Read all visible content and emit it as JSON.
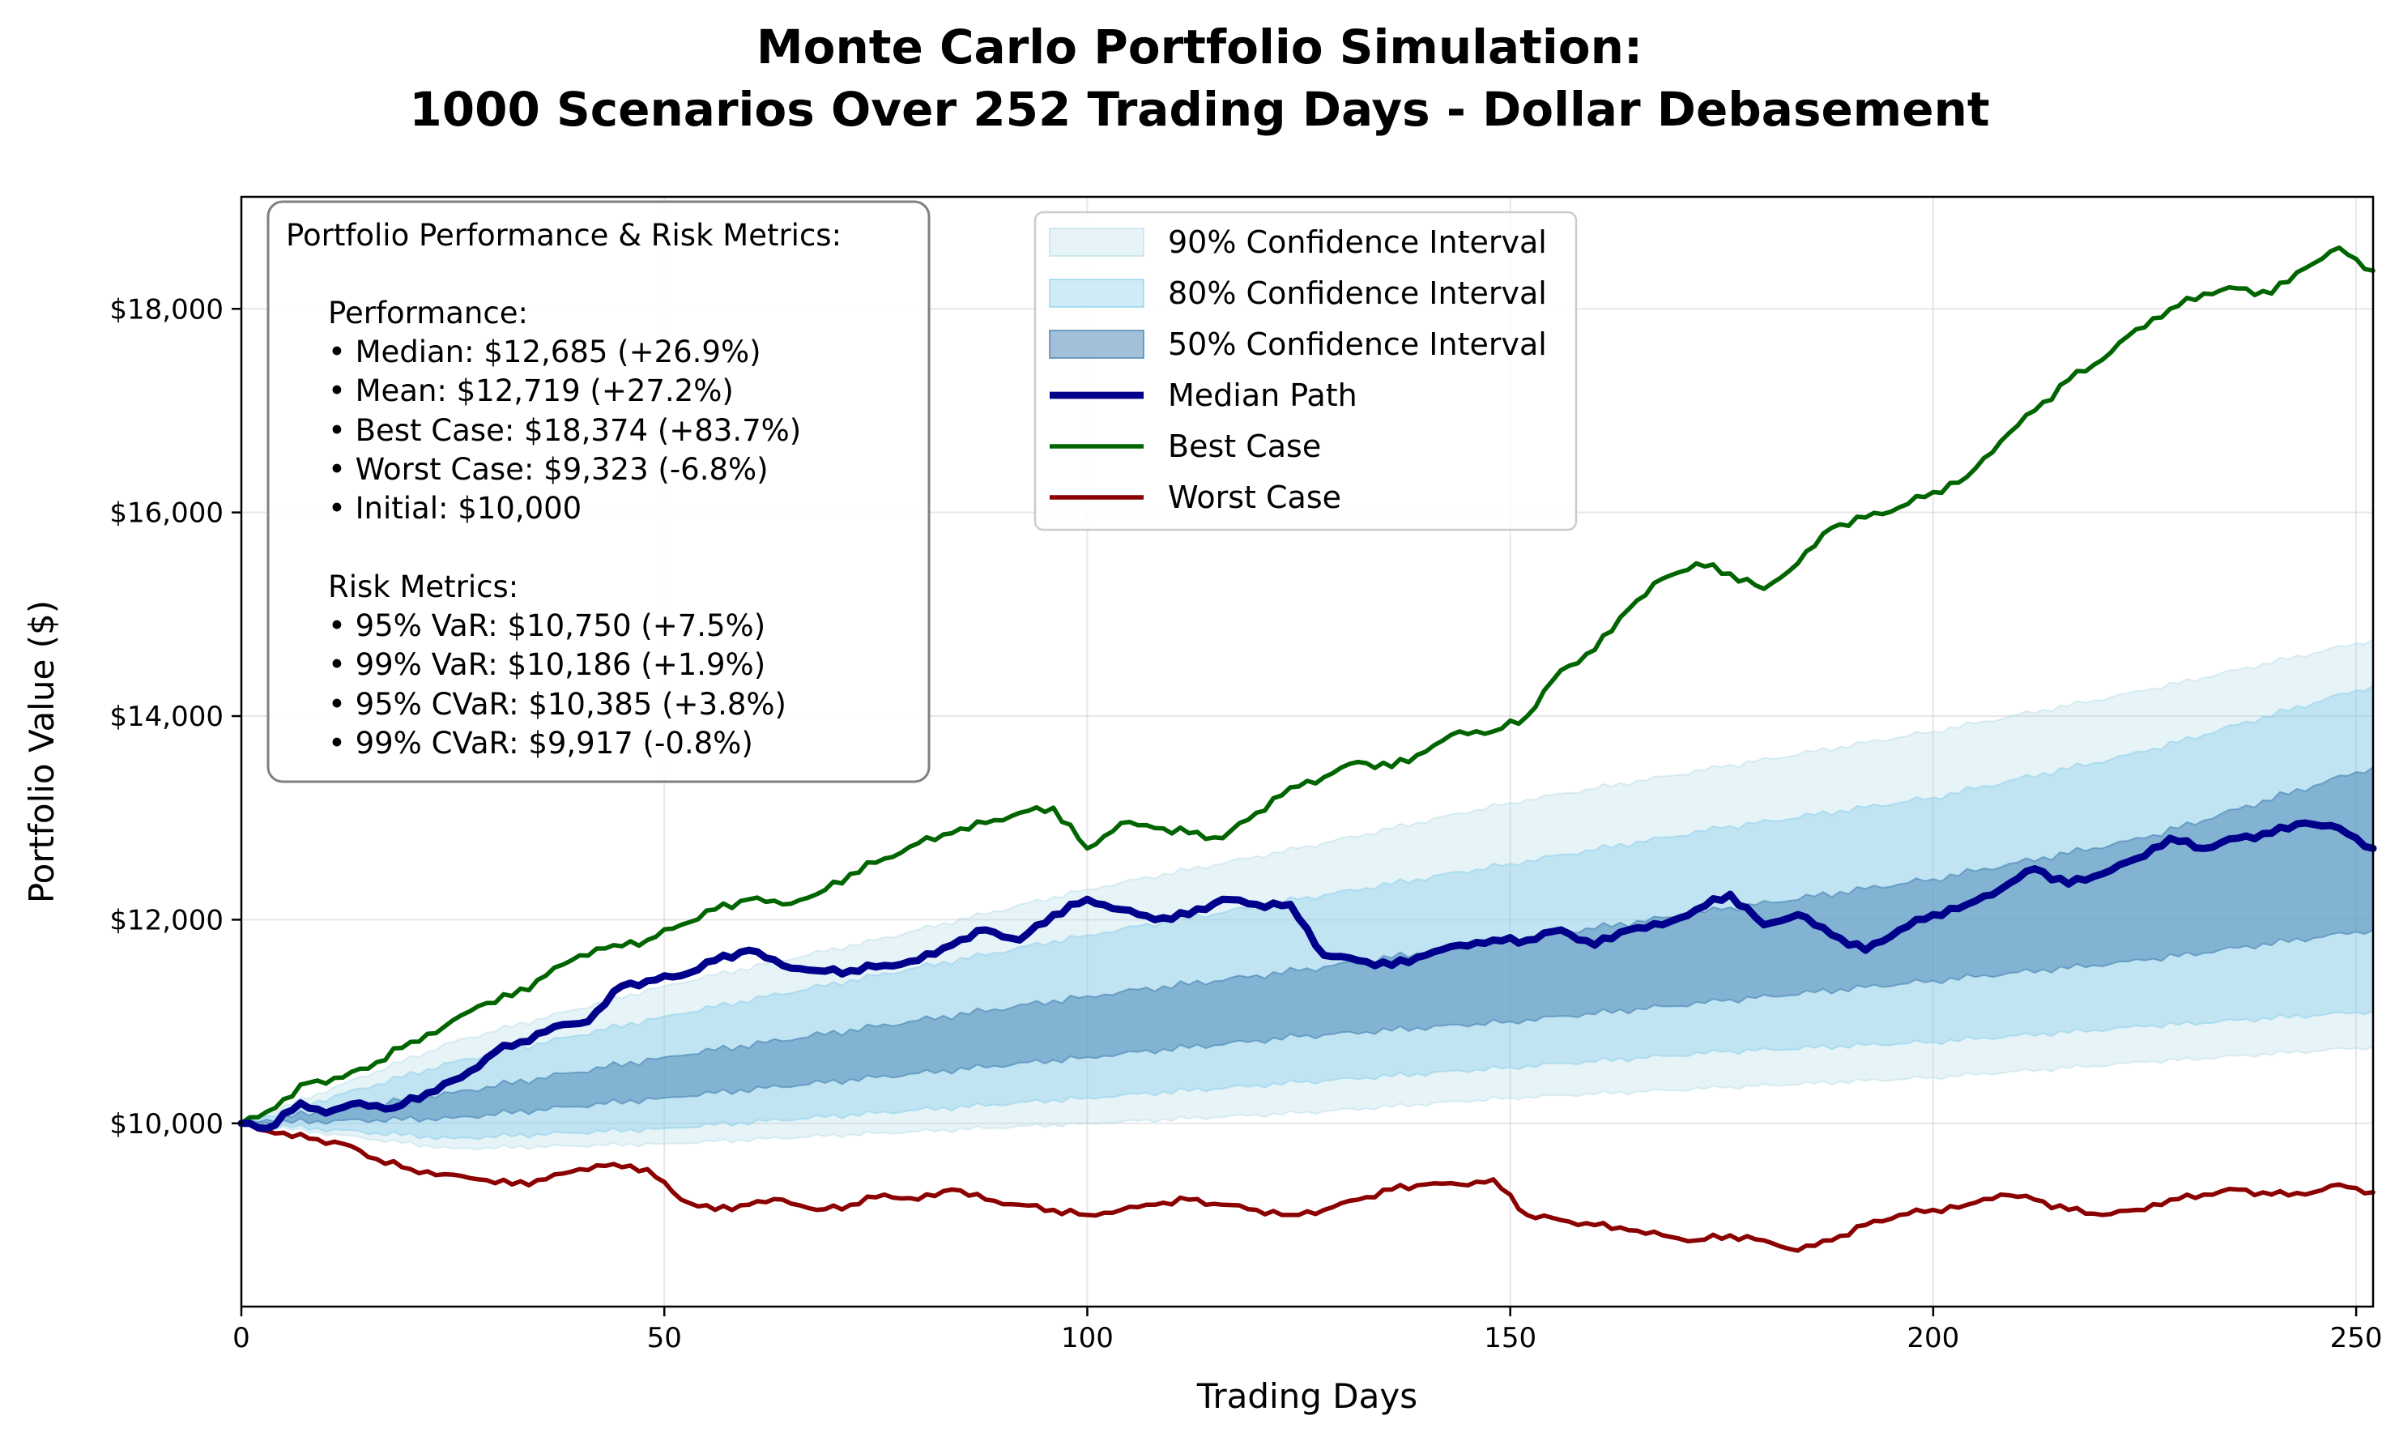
{
  "chart_data": {
    "type": "line",
    "title_lines": [
      "Monte Carlo Portfolio Simulation:",
      "1000 Scenarios Over 252 Trading Days - Dollar Debasement"
    ],
    "xlabel": "Trading Days",
    "ylabel": "Portfolio Value ($)",
    "xlim": [
      0,
      252
    ],
    "ylim": [
      8200,
      19100
    ],
    "x_ticks": [
      0,
      50,
      100,
      150,
      200,
      250
    ],
    "y_ticks": [
      10000,
      12000,
      14000,
      16000,
      18000
    ],
    "y_tick_labels": [
      "$10,000",
      "$12,000",
      "$14,000",
      "$16,000",
      "$18,000"
    ],
    "grid": true,
    "legend_position": "upper-center",
    "legend": [
      {
        "label": "90% Confidence Interval",
        "kind": "band",
        "color": "#add8e6",
        "opacity": 0.3
      },
      {
        "label": "80% Confidence Interval",
        "kind": "band",
        "color": "#87ceeb",
        "opacity": 0.4
      },
      {
        "label": "50% Confidence Interval",
        "kind": "band",
        "color": "#4682b4",
        "opacity": 0.5
      },
      {
        "label": "Median Path",
        "kind": "line",
        "color": "#00008b",
        "width": 4
      },
      {
        "label": "Best Case",
        "kind": "line",
        "color": "#006400",
        "width": 2.5
      },
      {
        "label": "Worst Case",
        "kind": "line",
        "color": "#8b0000",
        "width": 2.5
      }
    ],
    "bands": [
      {
        "name": "90% Confidence Interval",
        "color": "#add8e6",
        "opacity": 0.3,
        "x": [
          0,
          25,
          50,
          75,
          100,
          125,
          150,
          175,
          200,
          225,
          252
        ],
        "lower": [
          10000,
          9750,
          9800,
          9900,
          10000,
          10100,
          10250,
          10350,
          10450,
          10600,
          10750
        ],
        "upper": [
          10000,
          10800,
          11350,
          11800,
          12300,
          12700,
          13150,
          13500,
          13850,
          14250,
          14750
        ]
      },
      {
        "name": "80% Confidence Interval",
        "color": "#87ceeb",
        "opacity": 0.4,
        "x": [
          0,
          25,
          50,
          75,
          100,
          125,
          150,
          175,
          200,
          225,
          252
        ],
        "lower": [
          10000,
          9850,
          9950,
          10100,
          10250,
          10400,
          10550,
          10700,
          10800,
          10950,
          11100
        ],
        "upper": [
          10000,
          10600,
          11050,
          11450,
          11850,
          12200,
          12550,
          12900,
          13200,
          13650,
          14300
        ]
      },
      {
        "name": "50% Confidence Interval",
        "color": "#4682b4",
        "opacity": 0.5,
        "x": [
          0,
          25,
          50,
          75,
          100,
          125,
          150,
          175,
          200,
          225,
          252
        ],
        "lower": [
          10000,
          10050,
          10250,
          10450,
          10650,
          10850,
          11000,
          11200,
          11400,
          11600,
          11900
        ],
        "upper": [
          10000,
          10300,
          10650,
          10950,
          11250,
          11500,
          11800,
          12100,
          12400,
          12800,
          13500
        ]
      }
    ],
    "series": [
      {
        "name": "Median Path",
        "color": "#00008b",
        "x": [
          0,
          3,
          7,
          10,
          14,
          18,
          22,
          26,
          30,
          33,
          37,
          41,
          45,
          48,
          52,
          56,
          60,
          64,
          68,
          72,
          76,
          80,
          84,
          88,
          92,
          96,
          100,
          104,
          108,
          112,
          116,
          120,
          124,
          128,
          132,
          136,
          140,
          144,
          148,
          152,
          156,
          160,
          164,
          168,
          172,
          176,
          180,
          184,
          188,
          192,
          196,
          200,
          204,
          208,
          212,
          216,
          220,
          224,
          228,
          232,
          236,
          240,
          244,
          248,
          252
        ],
        "y": [
          10000,
          9950,
          10200,
          10100,
          10200,
          10150,
          10300,
          10450,
          10700,
          10800,
          10950,
          11000,
          11350,
          11400,
          11450,
          11600,
          11700,
          11550,
          11500,
          11500,
          11550,
          11600,
          11750,
          11900,
          11800,
          12050,
          12200,
          12100,
          12000,
          12050,
          12200,
          12150,
          12150,
          11650,
          11600,
          11550,
          11650,
          11750,
          11800,
          11800,
          11900,
          11750,
          11900,
          11950,
          12100,
          12250,
          11950,
          12050,
          11850,
          11700,
          11900,
          12050,
          12150,
          12300,
          12500,
          12350,
          12450,
          12600,
          12800,
          12700,
          12800,
          12850,
          12950,
          12900,
          12700
        ]
      },
      {
        "name": "Best Case",
        "color": "#006400",
        "x": [
          0,
          4,
          8,
          12,
          16,
          20,
          24,
          28,
          32,
          36,
          40,
          44,
          48,
          52,
          56,
          60,
          64,
          68,
          72,
          76,
          80,
          84,
          88,
          92,
          96,
          100,
          104,
          108,
          112,
          116,
          120,
          124,
          128,
          132,
          136,
          140,
          144,
          148,
          152,
          156,
          160,
          164,
          168,
          172,
          176,
          180,
          184,
          188,
          192,
          196,
          200,
          204,
          208,
          212,
          216,
          220,
          224,
          228,
          232,
          236,
          240,
          244,
          248,
          252
        ],
        "y": [
          10000,
          10150,
          10400,
          10450,
          10600,
          10800,
          10950,
          11150,
          11250,
          11450,
          11650,
          11750,
          11800,
          11950,
          12100,
          12200,
          12150,
          12250,
          12450,
          12600,
          12750,
          12850,
          12950,
          13050,
          13100,
          12700,
          12950,
          12900,
          12850,
          12800,
          13050,
          13300,
          13400,
          13550,
          13500,
          13650,
          13850,
          13850,
          14000,
          14450,
          14650,
          15050,
          15350,
          15500,
          15400,
          15250,
          15500,
          15850,
          15950,
          16050,
          16200,
          16350,
          16700,
          17000,
          17300,
          17500,
          17800,
          18000,
          18150,
          18200,
          18150,
          18400,
          18600,
          18374
        ]
      },
      {
        "name": "Worst Case",
        "color": "#8b0000",
        "x": [
          0,
          4,
          8,
          12,
          16,
          20,
          24,
          28,
          32,
          36,
          40,
          44,
          48,
          52,
          56,
          60,
          64,
          68,
          72,
          76,
          80,
          84,
          88,
          92,
          96,
          100,
          104,
          108,
          112,
          116,
          120,
          124,
          128,
          132,
          136,
          140,
          144,
          148,
          152,
          156,
          160,
          164,
          168,
          172,
          176,
          180,
          184,
          188,
          192,
          196,
          200,
          204,
          208,
          212,
          216,
          220,
          224,
          228,
          232,
          236,
          240,
          244,
          248,
          252
        ],
        "y": [
          10000,
          9900,
          9850,
          9800,
          9650,
          9550,
          9500,
          9450,
          9400,
          9450,
          9550,
          9600,
          9550,
          9250,
          9150,
          9200,
          9250,
          9150,
          9200,
          9300,
          9250,
          9350,
          9250,
          9200,
          9150,
          9100,
          9150,
          9200,
          9250,
          9200,
          9150,
          9100,
          9150,
          9250,
          9350,
          9400,
          9400,
          9450,
          9100,
          9050,
          9000,
          8950,
          8900,
          8850,
          8900,
          8850,
          8750,
          8850,
          9000,
          9100,
          9150,
          9200,
          9300,
          9250,
          9150,
          9100,
          9150,
          9250,
          9300,
          9350,
          9300,
          9300,
          9400,
          9323
        ]
      }
    ],
    "metrics_box": {
      "heading": "Portfolio Performance & Risk Metrics:",
      "performance_heading": "Performance:",
      "performance": [
        "• Median: $12,685 (+26.9%)",
        "• Mean: $12,719 (+27.2%)",
        "• Best Case: $18,374 (+83.7%)",
        "• Worst Case: $9,323 (-6.8%)",
        "• Initial: $10,000"
      ],
      "risk_heading": "Risk Metrics:",
      "risk": [
        "• 95% VaR: $10,750 (+7.5%)",
        "• 99% VaR: $10,186 (+1.9%)",
        "• 95% CVaR: $10,385 (+3.8%)",
        "• 99% CVaR: $9,917 (-0.8%)"
      ]
    }
  }
}
